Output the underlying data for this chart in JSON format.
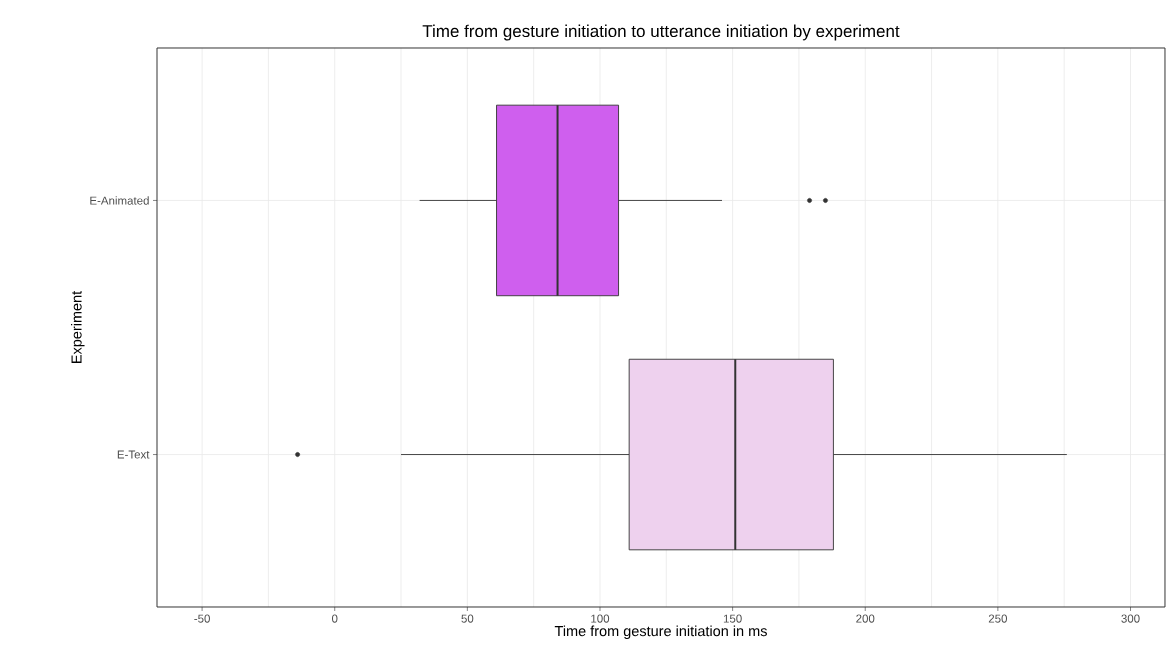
{
  "chart_data": {
    "type": "box",
    "orientation": "horizontal",
    "title": "Time from gesture initiation to utterance initiation by experiment",
    "xlabel": "Time from gesture initiation in ms",
    "ylabel": "Experiment",
    "categories": [
      "E-Animated",
      "E-Text"
    ],
    "boxes": [
      {
        "low": 32,
        "q1": 61,
        "median": 84,
        "q3": 107,
        "high": 146,
        "outliers": [
          179,
          185
        ]
      },
      {
        "low": 25,
        "q1": 111,
        "median": 151,
        "q3": 188,
        "high": 276,
        "outliers": [
          -14
        ]
      }
    ],
    "colors": [
      "#cf5fee",
      "#eed1ee"
    ],
    "xlim": [
      -67,
      313
    ],
    "xticks": [
      -50,
      0,
      50,
      100,
      150,
      200,
      250,
      300
    ],
    "grid": true
  }
}
